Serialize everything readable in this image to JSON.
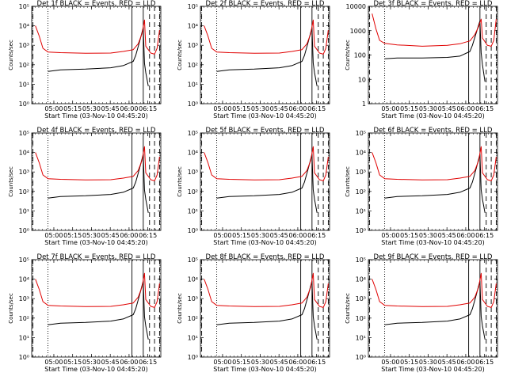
{
  "page": {
    "rows": 3,
    "cols": 3
  },
  "colors": {
    "events": "#000000",
    "lld": "#e00000",
    "axes": "#000000"
  },
  "chart_data": [
    {
      "type": "line",
      "title": "Det 1f BLACK = Events, RED = LLD",
      "xlabel": "Start Time (03-Nov-10 04:45:20)",
      "ylabel": "Counts/sec",
      "x_ticks": [
        "05:00",
        "05:15",
        "05:30",
        "05:45",
        "06:00",
        "06:15"
      ],
      "x_range_min": [
        0,
        99
      ],
      "y_ticks": [
        "10⁰",
        "10¹",
        "10²",
        "10³",
        "10⁴",
        "10⁵"
      ],
      "y_scale": "log",
      "y_range": [
        1,
        100000
      ],
      "series": [
        {
          "color": "#000000",
          "x_min": [
            10,
            20,
            40,
            60,
            70,
            78,
            80,
            83,
            86,
            87,
            88,
            90
          ],
          "y": [
            45,
            55,
            60,
            70,
            90,
            150,
            300,
            1500,
            8000,
            120,
            40,
            8
          ]
        },
        {
          "color": "#e00000",
          "x_min": [
            0,
            3,
            6,
            10,
            20,
            40,
            60,
            70,
            78,
            82,
            85,
            87,
            88,
            92,
            95,
            97,
            99
          ],
          "y": [
            10000,
            3000,
            700,
            450,
            420,
            390,
            400,
            480,
            600,
            1200,
            4000,
            20000,
            900,
            400,
            350,
            700,
            6000
          ]
        }
      ],
      "vlines_solid": [
        77,
        86
      ],
      "vlines_dashed": [
        -2,
        91,
        95,
        99
      ],
      "vlines_dotted": [
        10
      ]
    },
    {
      "type": "line",
      "title": "Det 2f BLACK = Events, RED = LLD",
      "xlabel": "Start Time (03-Nov-10 04:45:20)",
      "ylabel": "Counts/sec",
      "x_ticks": [
        "05:00",
        "05:15",
        "05:30",
        "05:45",
        "06:00",
        "06:15"
      ],
      "x_range_min": [
        0,
        99
      ],
      "y_ticks": [
        "10⁰",
        "10¹",
        "10²",
        "10³",
        "10⁴",
        "10⁵"
      ],
      "y_scale": "log",
      "y_range": [
        1,
        100000
      ],
      "series": [
        {
          "color": "#000000",
          "x_min": [
            10,
            20,
            40,
            60,
            70,
            78,
            80,
            83,
            86,
            87,
            88,
            90
          ],
          "y": [
            45,
            55,
            60,
            70,
            90,
            150,
            300,
            1500,
            8000,
            120,
            40,
            8
          ]
        },
        {
          "color": "#e00000",
          "x_min": [
            0,
            3,
            6,
            10,
            20,
            40,
            60,
            70,
            78,
            82,
            85,
            87,
            88,
            92,
            95,
            97,
            99
          ],
          "y": [
            10000,
            3000,
            700,
            450,
            420,
            390,
            400,
            480,
            600,
            1200,
            4000,
            20000,
            900,
            400,
            350,
            700,
            6000
          ]
        }
      ],
      "vlines_solid": [
        77,
        86
      ],
      "vlines_dashed": [
        -2,
        91,
        95,
        99
      ],
      "vlines_dotted": [
        10
      ]
    },
    {
      "type": "line",
      "title": "Det 3f BLACK = Events, RED = LLD",
      "xlabel": "Start Time (03-Nov-10 04:45:20)",
      "ylabel": "Counts/sec",
      "x_ticks": [
        "05:00",
        "05:15",
        "05:30",
        "05:45",
        "06:00",
        "06:15"
      ],
      "x_range_min": [
        0,
        99
      ],
      "y_ticks": [
        "1",
        "10",
        "100",
        "1000",
        "10000"
      ],
      "y_scale": "log",
      "y_range": [
        1,
        10000
      ],
      "series": [
        {
          "color": "#000000",
          "x_min": [
            10,
            20,
            40,
            60,
            70,
            78,
            80,
            83,
            86,
            87,
            88,
            90
          ],
          "y": [
            70,
            75,
            75,
            80,
            90,
            140,
            250,
            800,
            2500,
            120,
            40,
            8
          ]
        },
        {
          "color": "#e00000",
          "x_min": [
            0,
            3,
            6,
            10,
            20,
            40,
            60,
            70,
            78,
            82,
            85,
            87,
            88,
            92,
            95,
            97,
            99
          ],
          "y": [
            5000,
            1200,
            400,
            300,
            260,
            230,
            250,
            290,
            380,
            700,
            1500,
            3000,
            500,
            250,
            230,
            400,
            3000
          ]
        }
      ],
      "vlines_solid": [
        77,
        86
      ],
      "vlines_dashed": [
        -2,
        91,
        95,
        99
      ],
      "vlines_dotted": [
        10
      ]
    },
    {
      "type": "line",
      "title": "Det 4f BLACK = Events, RED = LLD",
      "xlabel": "Start Time (03-Nov-10 04:45:20)",
      "ylabel": "Counts/sec",
      "x_ticks": [
        "05:00",
        "05:15",
        "05:30",
        "05:45",
        "06:00",
        "06:15"
      ],
      "x_range_min": [
        0,
        99
      ],
      "y_ticks": [
        "10⁰",
        "10¹",
        "10²",
        "10³",
        "10⁴",
        "10⁵"
      ],
      "y_scale": "log",
      "y_range": [
        1,
        100000
      ],
      "series": [
        {
          "color": "#000000",
          "x_min": [
            10,
            20,
            40,
            60,
            70,
            78,
            80,
            83,
            86,
            87,
            88,
            90
          ],
          "y": [
            45,
            55,
            60,
            70,
            90,
            150,
            300,
            1500,
            8000,
            120,
            40,
            8
          ]
        },
        {
          "color": "#e00000",
          "x_min": [
            0,
            3,
            6,
            10,
            20,
            40,
            60,
            70,
            78,
            82,
            85,
            87,
            88,
            92,
            95,
            97,
            99
          ],
          "y": [
            10000,
            3000,
            700,
            450,
            420,
            390,
            400,
            480,
            600,
            1200,
            4000,
            20000,
            900,
            400,
            350,
            700,
            6000
          ]
        }
      ],
      "vlines_solid": [
        77,
        86
      ],
      "vlines_dashed": [
        -2,
        91,
        95,
        99
      ],
      "vlines_dotted": [
        10
      ]
    },
    {
      "type": "line",
      "title": "Det 5f BLACK = Events, RED = LLD",
      "xlabel": "Start Time (03-Nov-10 04:45:20)",
      "ylabel": "Counts/sec",
      "x_ticks": [
        "05:00",
        "05:15",
        "05:30",
        "05:45",
        "06:00",
        "06:15"
      ],
      "x_range_min": [
        0,
        99
      ],
      "y_ticks": [
        "10⁰",
        "10¹",
        "10²",
        "10³",
        "10⁴",
        "10⁵"
      ],
      "y_scale": "log",
      "y_range": [
        1,
        100000
      ],
      "series": [
        {
          "color": "#000000",
          "x_min": [
            10,
            20,
            40,
            60,
            70,
            78,
            80,
            83,
            86,
            87,
            88,
            90
          ],
          "y": [
            45,
            55,
            60,
            70,
            90,
            150,
            300,
            1500,
            8000,
            120,
            40,
            8
          ]
        },
        {
          "color": "#e00000",
          "x_min": [
            0,
            3,
            6,
            10,
            20,
            40,
            60,
            70,
            78,
            82,
            85,
            87,
            88,
            92,
            95,
            97,
            99
          ],
          "y": [
            10000,
            3000,
            700,
            450,
            420,
            390,
            400,
            480,
            600,
            1200,
            4000,
            20000,
            900,
            400,
            350,
            700,
            6000
          ]
        }
      ],
      "vlines_solid": [
        77,
        86
      ],
      "vlines_dashed": [
        -2,
        91,
        95,
        99
      ],
      "vlines_dotted": [
        10
      ]
    },
    {
      "type": "line",
      "title": "Det 6f BLACK = Events, RED = LLD",
      "xlabel": "Start Time (03-Nov-10 04:45:20)",
      "ylabel": "Counts/sec",
      "x_ticks": [
        "05:00",
        "05:15",
        "05:30",
        "05:45",
        "06:00",
        "06:15"
      ],
      "x_range_min": [
        0,
        99
      ],
      "y_ticks": [
        "10⁰",
        "10¹",
        "10²",
        "10³",
        "10⁴",
        "10⁵"
      ],
      "y_scale": "log",
      "y_range": [
        1,
        100000
      ],
      "series": [
        {
          "color": "#000000",
          "x_min": [
            10,
            20,
            40,
            60,
            70,
            78,
            80,
            83,
            86,
            87,
            88,
            90
          ],
          "y": [
            45,
            55,
            60,
            70,
            90,
            150,
            300,
            1500,
            8000,
            120,
            40,
            8
          ]
        },
        {
          "color": "#e00000",
          "x_min": [
            0,
            3,
            6,
            10,
            20,
            40,
            60,
            70,
            78,
            82,
            85,
            87,
            88,
            92,
            95,
            97,
            99
          ],
          "y": [
            10000,
            3000,
            700,
            450,
            420,
            390,
            400,
            480,
            600,
            1200,
            4000,
            20000,
            900,
            400,
            350,
            700,
            6000
          ]
        }
      ],
      "vlines_solid": [
        77,
        86
      ],
      "vlines_dashed": [
        -2,
        91,
        95,
        99
      ],
      "vlines_dotted": [
        10
      ]
    },
    {
      "type": "line",
      "title": "Det 7f BLACK = Events, RED = LLD",
      "xlabel": "Start Time (03-Nov-10 04:45:20)",
      "ylabel": "Counts/sec",
      "x_ticks": [
        "05:00",
        "05:15",
        "05:30",
        "05:45",
        "06:00",
        "06:15"
      ],
      "x_range_min": [
        0,
        99
      ],
      "y_ticks": [
        "10⁰",
        "10¹",
        "10²",
        "10³",
        "10⁴",
        "10⁵"
      ],
      "y_scale": "log",
      "y_range": [
        1,
        100000
      ],
      "series": [
        {
          "color": "#000000",
          "x_min": [
            10,
            20,
            40,
            60,
            70,
            78,
            80,
            83,
            86,
            87,
            88,
            90
          ],
          "y": [
            45,
            55,
            60,
            70,
            90,
            150,
            300,
            1500,
            8000,
            120,
            40,
            8
          ]
        },
        {
          "color": "#e00000",
          "x_min": [
            0,
            3,
            6,
            10,
            20,
            40,
            60,
            70,
            78,
            82,
            85,
            87,
            88,
            92,
            95,
            97,
            99
          ],
          "y": [
            10000,
            3000,
            700,
            450,
            420,
            390,
            400,
            480,
            600,
            1200,
            4000,
            20000,
            900,
            400,
            350,
            700,
            6000
          ]
        }
      ],
      "vlines_solid": [
        77,
        86
      ],
      "vlines_dashed": [
        -2,
        91,
        95,
        99
      ],
      "vlines_dotted": [
        10
      ]
    },
    {
      "type": "line",
      "title": "Det 8f BLACK = Events, RED = LLD",
      "xlabel": "Start Time (03-Nov-10 04:45:20)",
      "ylabel": "Counts/sec",
      "x_ticks": [
        "05:00",
        "05:15",
        "05:30",
        "05:45",
        "06:00",
        "06:15"
      ],
      "x_range_min": [
        0,
        99
      ],
      "y_ticks": [
        "10⁰",
        "10¹",
        "10²",
        "10³",
        "10⁴",
        "10⁵"
      ],
      "y_scale": "log",
      "y_range": [
        1,
        100000
      ],
      "series": [
        {
          "color": "#000000",
          "x_min": [
            10,
            20,
            40,
            60,
            70,
            78,
            80,
            83,
            86,
            87,
            88,
            90
          ],
          "y": [
            45,
            55,
            60,
            70,
            90,
            150,
            300,
            1500,
            8000,
            120,
            40,
            8
          ]
        },
        {
          "color": "#e00000",
          "x_min": [
            0,
            3,
            6,
            10,
            20,
            40,
            60,
            70,
            78,
            82,
            85,
            87,
            88,
            92,
            95,
            97,
            99
          ],
          "y": [
            10000,
            3000,
            700,
            450,
            420,
            390,
            400,
            480,
            600,
            1200,
            4000,
            20000,
            900,
            400,
            350,
            700,
            6000
          ]
        }
      ],
      "vlines_solid": [
        77,
        86
      ],
      "vlines_dashed": [
        -2,
        91,
        95,
        99
      ],
      "vlines_dotted": [
        10
      ]
    },
    {
      "type": "line",
      "title": "Det 9f BLACK = Events, RED = LLD",
      "xlabel": "Start Time (03-Nov-10 04:45:20)",
      "ylabel": "Counts/sec",
      "x_ticks": [
        "05:00",
        "05:15",
        "05:30",
        "05:45",
        "06:00",
        "06:15"
      ],
      "x_range_min": [
        0,
        99
      ],
      "y_ticks": [
        "10⁰",
        "10¹",
        "10²",
        "10³",
        "10⁴",
        "10⁵"
      ],
      "y_scale": "log",
      "y_range": [
        1,
        100000
      ],
      "series": [
        {
          "color": "#000000",
          "x_min": [
            10,
            20,
            40,
            60,
            70,
            78,
            80,
            83,
            86,
            87,
            88,
            90
          ],
          "y": [
            45,
            55,
            60,
            70,
            90,
            150,
            300,
            1500,
            8000,
            120,
            40,
            8
          ]
        },
        {
          "color": "#e00000",
          "x_min": [
            0,
            3,
            6,
            10,
            20,
            40,
            60,
            70,
            78,
            82,
            85,
            87,
            88,
            92,
            95,
            97,
            99
          ],
          "y": [
            10000,
            3000,
            700,
            450,
            420,
            390,
            400,
            480,
            600,
            1200,
            4000,
            20000,
            900,
            400,
            350,
            700,
            6000
          ]
        }
      ],
      "vlines_solid": [
        77,
        86
      ],
      "vlines_dashed": [
        -2,
        91,
        95,
        99
      ],
      "vlines_dotted": [
        10
      ]
    }
  ]
}
